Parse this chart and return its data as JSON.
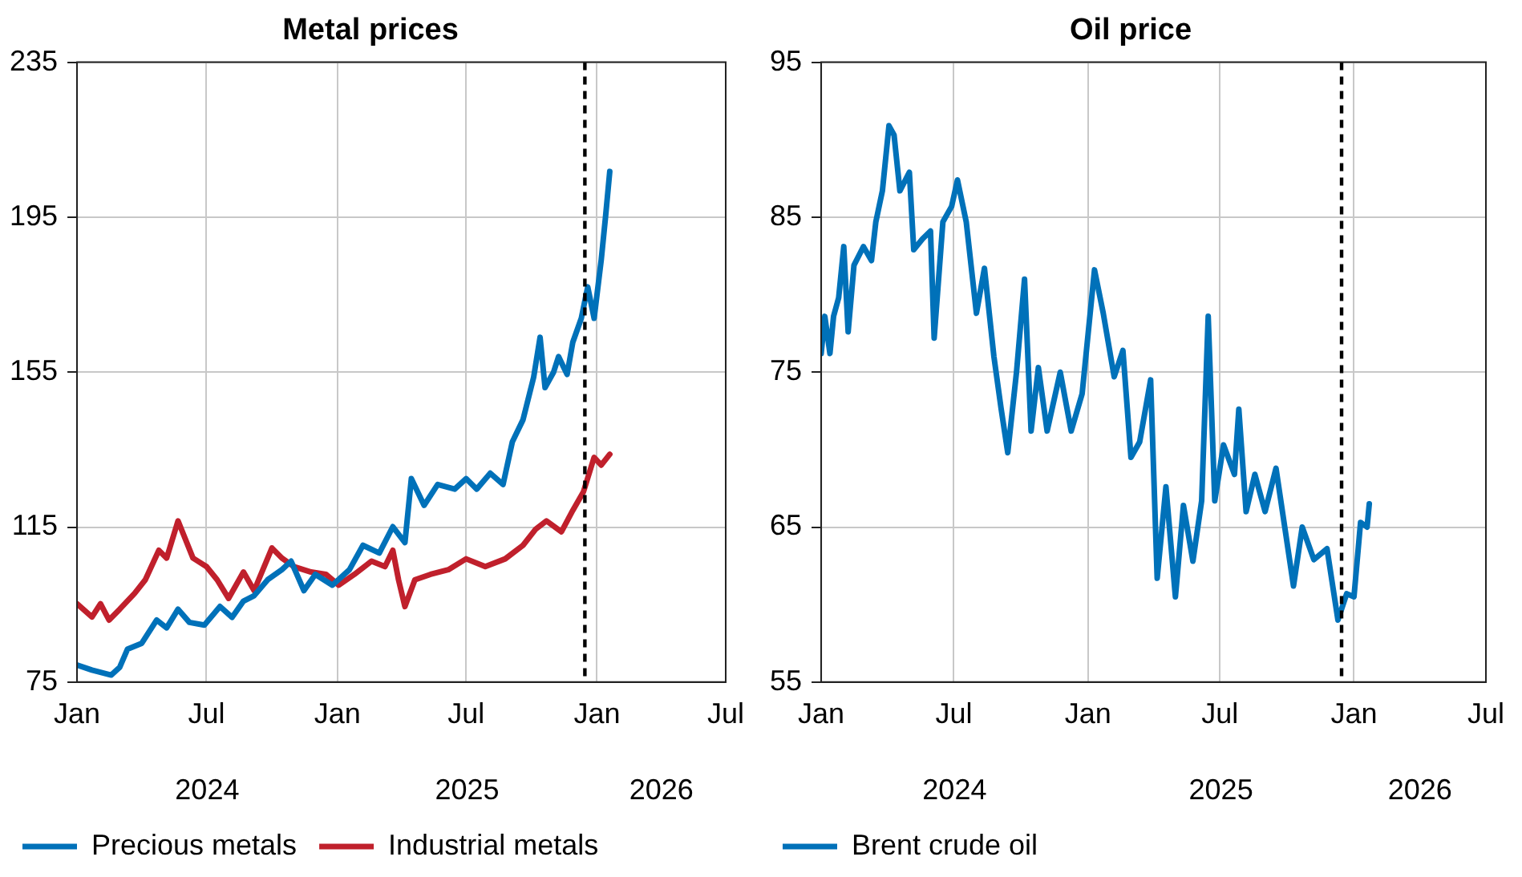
{
  "chart_data": [
    {
      "type": "line",
      "title": "Metal prices",
      "xlim": [
        "2024-01-01",
        "2026-07-01"
      ],
      "xticks": [
        {
          "value": "2024-01-01",
          "label": "Jan"
        },
        {
          "value": "2024-07-01",
          "label": "Jul"
        },
        {
          "value": "2025-01-01",
          "label": "Jan"
        },
        {
          "value": "2025-07-01",
          "label": "Jul"
        },
        {
          "value": "2026-01-01",
          "label": "Jan"
        },
        {
          "value": "2026-07-01",
          "label": "Jul"
        }
      ],
      "ylim": [
        75,
        235
      ],
      "yticks": [
        75,
        115,
        155,
        195,
        235
      ],
      "grid": true,
      "legend": "bottom",
      "marker": "none",
      "line_style": "solid",
      "annotations": [
        "2024",
        "2025",
        "2026"
      ],
      "ref_lines": [
        {
          "axis": "x",
          "value": "2025-12-15",
          "color": "#000000",
          "line_style": "dashed"
        }
      ],
      "series": [
        {
          "name": "Precious metals",
          "color": "#0071b9",
          "x": [
            "2024-01-01",
            "2024-01-22",
            "2024-02-18",
            "2024-03-01",
            "2024-03-12",
            "2024-04-01",
            "2024-04-22",
            "2024-05-06",
            "2024-05-22",
            "2024-06-07",
            "2024-06-28",
            "2024-07-20",
            "2024-08-06",
            "2024-08-22",
            "2024-09-06",
            "2024-09-25",
            "2024-10-15",
            "2024-10-28",
            "2024-11-15",
            "2024-12-01",
            "2024-12-25",
            "2025-01-18",
            "2025-02-06",
            "2025-03-01",
            "2025-03-20",
            "2025-04-06",
            "2025-04-15",
            "2025-05-03",
            "2025-05-22",
            "2025-06-15",
            "2025-07-01",
            "2025-07-16",
            "2025-08-04",
            "2025-08-22",
            "2025-09-04",
            "2025-09-19",
            "2025-10-04",
            "2025-10-13",
            "2025-10-20",
            "2025-11-01",
            "2025-11-08",
            "2025-11-20",
            "2025-11-28",
            "2025-12-10",
            "2025-12-19",
            "2025-12-28",
            "2026-01-07",
            "2026-01-13",
            "2026-01-19"
          ],
          "values": [
            79.4,
            78.1,
            76.8,
            78.8,
            83.5,
            85,
            91,
            89,
            93.8,
            90.4,
            89.7,
            94.5,
            91.7,
            95.9,
            97.3,
            101.4,
            104,
            106.2,
            98.6,
            102.8,
            100,
            104,
            110.3,
            108.3,
            115.1,
            111,
            127.5,
            120.6,
            126,
            124.8,
            127.5,
            124.8,
            128.9,
            126,
            137,
            142.7,
            153.7,
            164,
            151,
            155,
            159,
            154.4,
            162.7,
            168.9,
            177,
            168.9,
            184,
            195,
            206.8
          ]
        },
        {
          "name": "Industrial metals",
          "color": "#c0202c",
          "x": [
            "2024-01-01",
            "2024-01-22",
            "2024-02-03",
            "2024-02-15",
            "2024-03-01",
            "2024-03-22",
            "2024-04-06",
            "2024-04-25",
            "2024-05-06",
            "2024-05-22",
            "2024-06-12",
            "2024-07-01",
            "2024-07-16",
            "2024-08-01",
            "2024-08-22",
            "2024-09-06",
            "2024-10-01",
            "2024-10-15",
            "2024-11-01",
            "2024-11-25",
            "2024-12-16",
            "2025-01-03",
            "2025-01-25",
            "2025-02-18",
            "2025-03-09",
            "2025-03-20",
            "2025-03-28",
            "2025-04-06",
            "2025-04-20",
            "2025-05-12",
            "2025-06-06",
            "2025-07-01",
            "2025-07-28",
            "2025-08-25",
            "2025-09-19",
            "2025-10-07",
            "2025-10-22",
            "2025-11-12",
            "2025-11-28",
            "2025-12-13",
            "2025-12-28",
            "2026-01-07",
            "2026-01-19"
          ],
          "values": [
            95.2,
            91.8,
            95.2,
            91,
            93.8,
            97.9,
            101.4,
            109,
            107,
            116.6,
            107,
            104.8,
            101.4,
            96.6,
            103.4,
            98.6,
            109.6,
            107,
            104.8,
            103.4,
            102.8,
            100,
            102.8,
            106.2,
            104.8,
            109,
            101.4,
            94.5,
            101.4,
            102.8,
            104,
            106.8,
            104.8,
            106.8,
            110.3,
            114.5,
            116.6,
            113.8,
            119.3,
            124.1,
            133,
            131,
            133.8
          ]
        }
      ]
    },
    {
      "type": "line",
      "title": "Oil price",
      "xlim": [
        "2024-01-01",
        "2026-07-01"
      ],
      "xticks": [
        {
          "value": "2024-01-01",
          "label": "Jan"
        },
        {
          "value": "2024-07-01",
          "label": "Jul"
        },
        {
          "value": "2025-01-01",
          "label": "Jan"
        },
        {
          "value": "2025-07-01",
          "label": "Jul"
        },
        {
          "value": "2026-01-01",
          "label": "Jan"
        },
        {
          "value": "2026-07-01",
          "label": "Jul"
        }
      ],
      "ylim": [
        55,
        95
      ],
      "yticks": [
        55,
        65,
        75,
        85,
        95
      ],
      "grid": true,
      "legend": "bottom",
      "marker": "none",
      "line_style": "solid",
      "annotations": [
        "2024",
        "2025",
        "2026"
      ],
      "ref_lines": [
        {
          "axis": "x",
          "value": "2025-12-15",
          "color": "#000000",
          "line_style": "dashed"
        }
      ],
      "series": [
        {
          "name": "Brent crude oil",
          "color": "#0071b9",
          "x": [
            "2024-01-01",
            "2024-01-06",
            "2024-01-13",
            "2024-01-18",
            "2024-01-25",
            "2024-02-01",
            "2024-02-07",
            "2024-02-15",
            "2024-02-28",
            "2024-03-10",
            "2024-03-16",
            "2024-03-25",
            "2024-04-03",
            "2024-04-10",
            "2024-04-18",
            "2024-05-01",
            "2024-05-07",
            "2024-05-19",
            "2024-05-30",
            "2024-06-04",
            "2024-06-16",
            "2024-06-28",
            "2024-07-06",
            "2024-07-18",
            "2024-08-01",
            "2024-08-12",
            "2024-08-25",
            "2024-09-04",
            "2024-09-13",
            "2024-09-25",
            "2024-10-06",
            "2024-10-15",
            "2024-10-25",
            "2024-11-06",
            "2024-11-24",
            "2024-12-09",
            "2024-12-24",
            "2025-01-10",
            "2025-01-22",
            "2025-02-06",
            "2025-02-18",
            "2025-03-01",
            "2025-03-13",
            "2025-03-28",
            "2025-04-06",
            "2025-04-18",
            "2025-05-01",
            "2025-05-12",
            "2025-05-25",
            "2025-06-06",
            "2025-06-15",
            "2025-06-24",
            "2025-07-06",
            "2025-07-21",
            "2025-07-27",
            "2025-08-06",
            "2025-08-18",
            "2025-09-01",
            "2025-09-16",
            "2025-09-28",
            "2025-10-10",
            "2025-10-22",
            "2025-11-07",
            "2025-11-25",
            "2025-12-10",
            "2025-12-22",
            "2026-01-01",
            "2026-01-10",
            "2026-01-19",
            "2026-01-22"
          ],
          "values": [
            76.2,
            78.6,
            76.2,
            78.6,
            79.8,
            83.1,
            77.6,
            81.9,
            83.1,
            82.2,
            84.7,
            86.7,
            90.9,
            90.3,
            86.7,
            87.9,
            82.9,
            83.6,
            84.1,
            77.2,
            84.7,
            85.7,
            87.4,
            84.7,
            78.8,
            81.7,
            76,
            72.6,
            69.8,
            75,
            81,
            71.2,
            75.3,
            71.2,
            75,
            71.2,
            73.6,
            81.6,
            78.8,
            74.7,
            76.4,
            69.5,
            70.5,
            74.5,
            61.7,
            67.6,
            60.5,
            66.4,
            62.8,
            66.7,
            78.6,
            66.7,
            70.3,
            68.4,
            72.6,
            66,
            68.4,
            66,
            68.8,
            65,
            61.2,
            65,
            62.9,
            63.6,
            59,
            60.7,
            60.5,
            65.3,
            65,
            66.5
          ]
        }
      ]
    }
  ]
}
